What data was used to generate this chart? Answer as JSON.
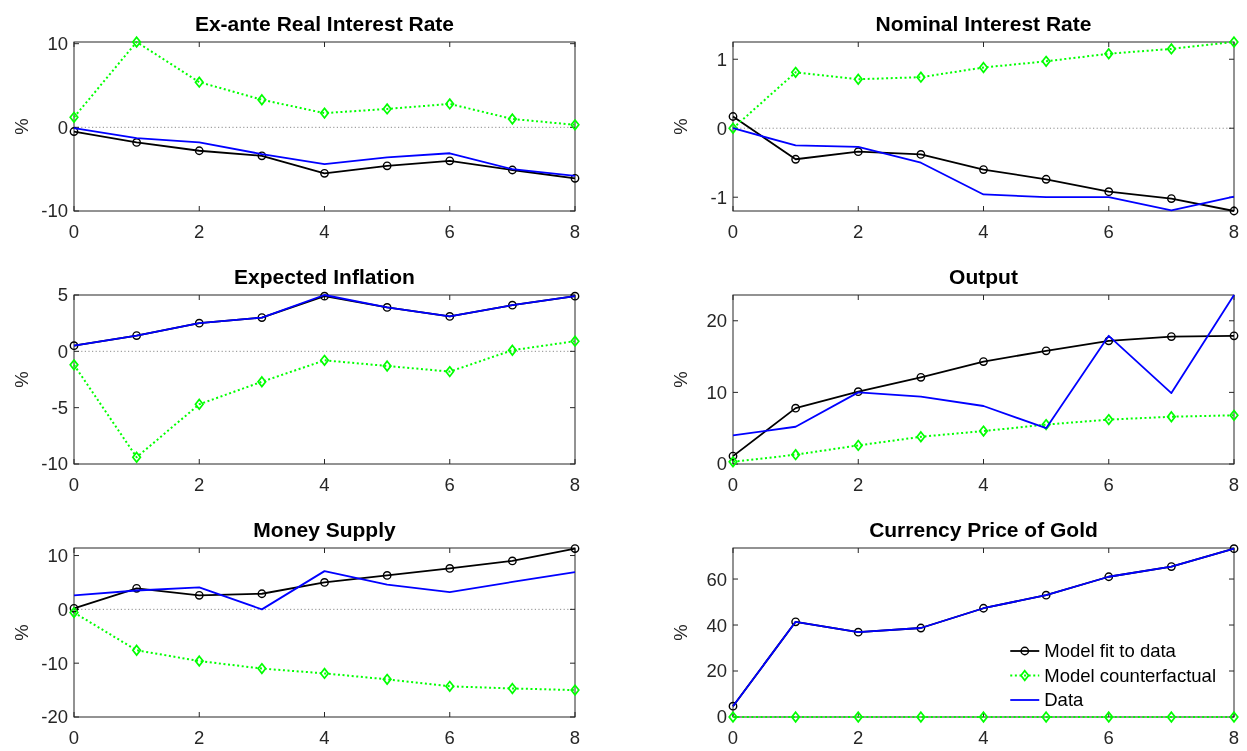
{
  "chart_data": [
    {
      "type": "line",
      "title": "Ex-ante Real Interest Rate",
      "ylabel": "%",
      "x": [
        0,
        1,
        2,
        3,
        4,
        5,
        6,
        7,
        8
      ],
      "xlim": [
        0,
        8
      ],
      "xticks": [
        0,
        2,
        4,
        6,
        8
      ],
      "ylim": [
        -10,
        10.2
      ],
      "yticks": [
        -10,
        0,
        10
      ],
      "ref_lines": [
        {
          "axis": "y",
          "value": 0,
          "color": "#808080",
          "line_style": "dotted"
        }
      ],
      "series": [
        {
          "color": "#000000",
          "marker": "circle",
          "line_style": "solid",
          "values": [
            -0.5,
            -1.8,
            -2.8,
            -3.4,
            -5.5,
            -4.6,
            -4.0,
            -5.1,
            -6.1
          ]
        },
        {
          "color": "#00ff00",
          "marker": "diamond",
          "line_style": "dotted",
          "values": [
            1.2,
            10.2,
            5.4,
            3.3,
            1.7,
            2.2,
            2.8,
            1.0,
            0.3
          ]
        },
        {
          "color": "#0000ff",
          "marker": "none",
          "line_style": "solid",
          "values": [
            -0.1,
            -1.3,
            -1.8,
            -3.2,
            -4.4,
            -3.6,
            -3.1,
            -5.0,
            -5.8
          ]
        }
      ]
    },
    {
      "type": "line",
      "title": "Nominal Interest Rate",
      "ylabel": "%",
      "x": [
        0,
        1,
        2,
        3,
        4,
        5,
        6,
        7,
        8
      ],
      "xlim": [
        0,
        8
      ],
      "xticks": [
        0,
        2,
        4,
        6,
        8
      ],
      "ylim": [
        -1.2,
        1.25
      ],
      "yticks": [
        -1,
        0,
        1
      ],
      "ref_lines": [
        {
          "axis": "y",
          "value": 0,
          "color": "#808080",
          "line_style": "dotted"
        }
      ],
      "series": [
        {
          "color": "#000000",
          "marker": "circle",
          "line_style": "solid",
          "values": [
            0.17,
            -0.45,
            -0.34,
            -0.38,
            -0.6,
            -0.74,
            -0.92,
            -1.02,
            -1.2
          ]
        },
        {
          "color": "#00ff00",
          "marker": "diamond",
          "line_style": "dotted",
          "values": [
            0,
            0.81,
            0.71,
            0.74,
            0.88,
            0.97,
            1.08,
            1.15,
            1.25
          ]
        },
        {
          "color": "#0000ff",
          "marker": "none",
          "line_style": "solid",
          "values": [
            0,
            -0.25,
            -0.27,
            -0.5,
            -0.96,
            -1.0,
            -1.0,
            -1.19,
            -0.99
          ]
        }
      ]
    },
    {
      "type": "line",
      "title": "Expected Inflation",
      "ylabel": "%",
      "x": [
        0,
        1,
        2,
        3,
        4,
        5,
        6,
        7,
        8
      ],
      "xlim": [
        0,
        8
      ],
      "xticks": [
        0,
        2,
        4,
        6,
        8
      ],
      "ylim": [
        -10,
        5
      ],
      "yticks": [
        -10,
        -5,
        0,
        5
      ],
      "ref_lines": [
        {
          "axis": "y",
          "value": 0,
          "color": "#808080",
          "line_style": "dotted"
        }
      ],
      "series": [
        {
          "color": "#000000",
          "marker": "circle",
          "line_style": "solid",
          "values": [
            0.5,
            1.4,
            2.5,
            3.0,
            4.9,
            3.9,
            3.1,
            4.1,
            4.9
          ]
        },
        {
          "color": "#00ff00",
          "marker": "diamond",
          "line_style": "dotted",
          "values": [
            -1.2,
            -9.4,
            -4.7,
            -2.7,
            -0.8,
            -1.3,
            -1.8,
            0.1,
            0.9
          ]
        },
        {
          "color": "#0000ff",
          "marker": "none",
          "line_style": "solid",
          "values": [
            0.5,
            1.4,
            2.5,
            3.0,
            5.0,
            3.9,
            3.1,
            4.1,
            4.9
          ]
        }
      ]
    },
    {
      "type": "line",
      "title": "Output",
      "ylabel": "%",
      "x": [
        0,
        1,
        2,
        3,
        4,
        5,
        6,
        7,
        8
      ],
      "xlim": [
        0,
        8
      ],
      "xticks": [
        0,
        2,
        4,
        6,
        8
      ],
      "ylim": [
        0,
        23.6
      ],
      "yticks": [
        0,
        10,
        20
      ],
      "series": [
        {
          "color": "#000000",
          "marker": "circle",
          "line_style": "solid",
          "values": [
            1.1,
            7.8,
            10.1,
            12.1,
            14.3,
            15.8,
            17.2,
            17.8,
            17.9
          ]
        },
        {
          "color": "#00ff00",
          "marker": "diamond",
          "line_style": "dotted",
          "values": [
            0.3,
            1.3,
            2.6,
            3.8,
            4.6,
            5.5,
            6.2,
            6.6,
            6.8
          ]
        },
        {
          "color": "#0000ff",
          "marker": "none",
          "line_style": "solid",
          "values": [
            4.0,
            5.2,
            10.0,
            9.4,
            8.1,
            5.0,
            17.9,
            9.9,
            23.6
          ]
        }
      ]
    },
    {
      "type": "line",
      "title": "Money Supply",
      "ylabel": "%",
      "x": [
        0,
        1,
        2,
        3,
        4,
        5,
        6,
        7,
        8
      ],
      "xlim": [
        0,
        8
      ],
      "xticks": [
        0,
        2,
        4,
        6,
        8
      ],
      "ylim": [
        -20,
        11.4
      ],
      "yticks": [
        -20,
        -10,
        0,
        10
      ],
      "ref_lines": [
        {
          "axis": "y",
          "value": 0,
          "color": "#808080",
          "line_style": "dotted"
        }
      ],
      "series": [
        {
          "color": "#000000",
          "marker": "circle",
          "line_style": "solid",
          "values": [
            0.2,
            3.9,
            2.6,
            2.9,
            5.0,
            6.3,
            7.6,
            9.0,
            11.3
          ]
        },
        {
          "color": "#00ff00",
          "marker": "diamond",
          "line_style": "dotted",
          "values": [
            -0.6,
            -7.6,
            -9.6,
            -11.0,
            -11.9,
            -13.0,
            -14.3,
            -14.7,
            -15.0
          ]
        },
        {
          "color": "#0000ff",
          "marker": "none",
          "line_style": "solid",
          "values": [
            2.6,
            3.5,
            4.1,
            0,
            7.1,
            4.6,
            3.2,
            5.1,
            6.9
          ]
        }
      ]
    },
    {
      "type": "line",
      "title": "Currency Price of Gold",
      "ylabel": "%",
      "x": [
        0,
        1,
        2,
        3,
        4,
        5,
        6,
        7,
        8
      ],
      "xlim": [
        0,
        8
      ],
      "xticks": [
        0,
        2,
        4,
        6,
        8
      ],
      "ylim": [
        0,
        73.5
      ],
      "yticks": [
        0,
        20,
        40,
        60
      ],
      "legend": "bottom right",
      "series": [
        {
          "name": "Model fit to data",
          "color": "#000000",
          "marker": "circle",
          "line_style": "solid",
          "values": [
            4.7,
            41.4,
            36.9,
            38.7,
            47.3,
            53.0,
            61.0,
            65.4,
            73.2
          ]
        },
        {
          "name": "Model counterfactual",
          "color": "#00ff00",
          "marker": "diamond",
          "line_style": "dotted",
          "values": [
            0,
            0,
            0,
            0,
            0,
            0,
            0,
            0,
            0
          ]
        },
        {
          "name": "Data",
          "color": "#0000ff",
          "marker": "none",
          "line_style": "solid",
          "values": [
            4.7,
            41.4,
            36.9,
            38.7,
            47.3,
            53.0,
            61.0,
            65.4,
            73.2
          ]
        }
      ]
    }
  ]
}
